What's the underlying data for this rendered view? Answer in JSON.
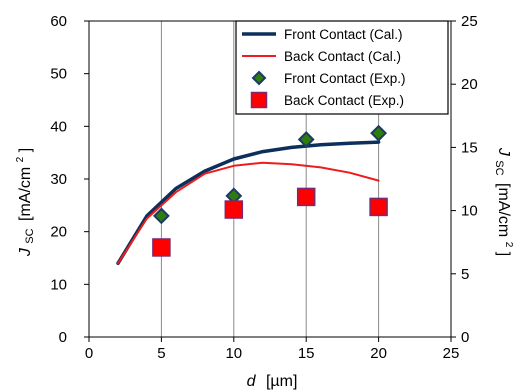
{
  "chart_data": {
    "type": "line",
    "xlabel": {
      "main": "d",
      "unit": "[µm]"
    },
    "ylabel_left": {
      "main": "J",
      "sub": "SC",
      "unit": "[mA/cm",
      "sup": "2",
      "close": "]"
    },
    "ylabel_right": {
      "main": "J",
      "sub": "SC",
      "unit": "[mA/cm",
      "sup": "2",
      "close": "]"
    },
    "xlim": [
      0,
      25
    ],
    "ylim_left": [
      0,
      60
    ],
    "ylim_right": [
      0,
      25
    ],
    "x_ticks": [
      "0",
      "5",
      "10",
      "15",
      "20",
      "25"
    ],
    "y_left_ticks": [
      "0",
      "10",
      "20",
      "30",
      "40",
      "50",
      "60"
    ],
    "y_right_ticks": [
      "0",
      "5",
      "10",
      "15",
      "20",
      "25"
    ],
    "grid": {
      "vertical": true,
      "horizontal": false
    },
    "legend_position": "top-right",
    "series": [
      {
        "name": "Front Contact (Cal.)",
        "kind": "line",
        "color": "#0d2f5c",
        "x": [
          2,
          4,
          6,
          8,
          10,
          12,
          14,
          16,
          18,
          20
        ],
        "y": [
          14,
          23,
          28.2,
          31.5,
          33.8,
          35.2,
          36,
          36.5,
          36.8,
          37
        ]
      },
      {
        "name": "Back Contact (Cal.)",
        "kind": "line",
        "color": "#ee1c1c",
        "x": [
          2,
          4,
          6,
          8,
          10,
          12,
          14,
          16,
          18,
          20
        ],
        "y": [
          14,
          22.5,
          27.5,
          31,
          32.5,
          33.1,
          32.8,
          32.2,
          31.2,
          29.7
        ]
      },
      {
        "name": "Front Contact (Exp.)",
        "kind": "marker",
        "marker": "diamond",
        "color": "#2e7d0c",
        "stroke": "#1c3a66",
        "x": [
          5,
          10,
          15,
          20
        ],
        "y": [
          23,
          26.8,
          37.5,
          38.7
        ]
      },
      {
        "name": "Back Contact (Exp.)",
        "kind": "marker",
        "marker": "square",
        "color": "#ff0000",
        "stroke": "#7a2a70",
        "x": [
          5,
          10,
          15,
          20
        ],
        "y": [
          17,
          24.2,
          26.6,
          24.7
        ]
      }
    ]
  }
}
